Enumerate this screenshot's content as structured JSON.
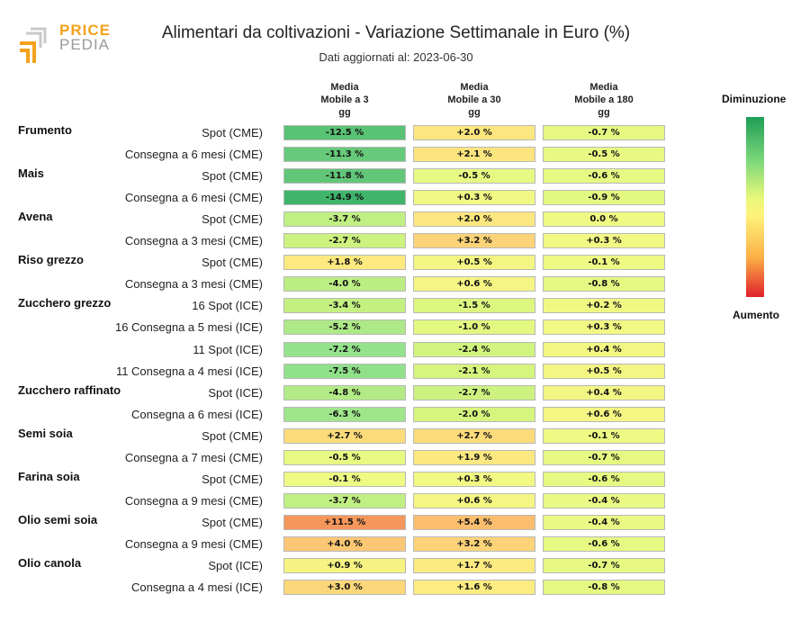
{
  "logo": {
    "line1": "PRICE",
    "line2": "PEDIA"
  },
  "header": {
    "title": "Alimentari da coltivazioni - Variazione Settimanale in Euro (%)",
    "subtitle": "Dati aggiornati al: 2023-06-30"
  },
  "legend": {
    "top": "Diminuzione",
    "bottom": "Aumento"
  },
  "chart_data": {
    "type": "heatmap",
    "columns": [
      "Media Mobile a 3 gg",
      "Media Mobile a 30 gg",
      "Media Mobile a 180 gg"
    ],
    "column_lines": [
      [
        "Media",
        "Mobile a 3",
        "gg"
      ],
      [
        "Media",
        "Mobile a 30",
        "gg"
      ],
      [
        "Media",
        "Mobile a 180",
        "gg"
      ]
    ],
    "rows": [
      {
        "group": "Frumento",
        "label": "Spot (CME)",
        "values": [
          -12.5,
          2.0,
          -0.7
        ],
        "text": [
          "-12.5 %",
          "+2.0 %",
          "-0.7 %"
        ]
      },
      {
        "group": "",
        "label": "Consegna a 6 mesi (CME)",
        "values": [
          -11.3,
          2.1,
          -0.5
        ],
        "text": [
          "-11.3 %",
          "+2.1 %",
          "-0.5 %"
        ]
      },
      {
        "group": "Mais",
        "label": "Spot (CME)",
        "values": [
          -11.8,
          -0.5,
          -0.6
        ],
        "text": [
          "-11.8 %",
          "-0.5 %",
          "-0.6 %"
        ]
      },
      {
        "group": "",
        "label": "Consegna a 6 mesi (CME)",
        "values": [
          -14.9,
          0.3,
          -0.9
        ],
        "text": [
          "-14.9 %",
          "+0.3 %",
          "-0.9 %"
        ]
      },
      {
        "group": "Avena",
        "label": "Spot (CME)",
        "values": [
          -3.7,
          2.0,
          0.0
        ],
        "text": [
          "-3.7 %",
          "+2.0 %",
          "0.0 %"
        ]
      },
      {
        "group": "",
        "label": "Consegna a 3 mesi (CME)",
        "values": [
          -2.7,
          3.2,
          0.3
        ],
        "text": [
          "-2.7 %",
          "+3.2 %",
          "+0.3 %"
        ]
      },
      {
        "group": "Riso grezzo",
        "label": "Spot (CME)",
        "values": [
          1.8,
          0.5,
          -0.1
        ],
        "text": [
          "+1.8 %",
          "+0.5 %",
          "-0.1 %"
        ]
      },
      {
        "group": "",
        "label": "Consegna a 3 mesi (CME)",
        "values": [
          -4.0,
          0.6,
          -0.8
        ],
        "text": [
          "-4.0 %",
          "+0.6 %",
          "-0.8 %"
        ]
      },
      {
        "group": "Zucchero grezzo",
        "label": "16 Spot (ICE)",
        "values": [
          -3.4,
          -1.5,
          0.2
        ],
        "text": [
          "-3.4 %",
          "-1.5 %",
          "+0.2 %"
        ]
      },
      {
        "group": "",
        "label": "16 Consegna a 5 mesi (ICE)",
        "values": [
          -5.2,
          -1.0,
          0.3
        ],
        "text": [
          "-5.2 %",
          "-1.0 %",
          "+0.3 %"
        ]
      },
      {
        "group": "",
        "label": "11 Spot (ICE)",
        "values": [
          -7.2,
          -2.4,
          0.4
        ],
        "text": [
          "-7.2 %",
          "-2.4 %",
          "+0.4 %"
        ]
      },
      {
        "group": "",
        "label": "11 Consegna a 4 mesi (ICE)",
        "values": [
          -7.5,
          -2.1,
          0.5
        ],
        "text": [
          "-7.5 %",
          "-2.1 %",
          "+0.5 %"
        ]
      },
      {
        "group": "Zucchero raffinato",
        "label": "Spot (ICE)",
        "values": [
          -4.8,
          -2.7,
          0.4
        ],
        "text": [
          "-4.8 %",
          "-2.7 %",
          "+0.4 %"
        ]
      },
      {
        "group": "",
        "label": "Consegna a 6 mesi (ICE)",
        "values": [
          -6.3,
          -2.0,
          0.6
        ],
        "text": [
          "-6.3 %",
          "-2.0 %",
          "+0.6 %"
        ]
      },
      {
        "group": "Semi soia",
        "label": "Spot (CME)",
        "values": [
          2.7,
          2.7,
          -0.1
        ],
        "text": [
          "+2.7 %",
          "+2.7 %",
          "-0.1 %"
        ]
      },
      {
        "group": "",
        "label": "Consegna a 7 mesi (CME)",
        "values": [
          -0.5,
          1.9,
          -0.7
        ],
        "text": [
          "-0.5 %",
          "+1.9 %",
          "-0.7 %"
        ]
      },
      {
        "group": "Farina soia",
        "label": "Spot (CME)",
        "values": [
          -0.1,
          0.3,
          -0.6
        ],
        "text": [
          "-0.1 %",
          "+0.3 %",
          "-0.6 %"
        ]
      },
      {
        "group": "",
        "label": "Consegna a 9 mesi (CME)",
        "values": [
          -3.7,
          0.6,
          -0.4
        ],
        "text": [
          "-3.7 %",
          "+0.6 %",
          "-0.4 %"
        ]
      },
      {
        "group": "Olio semi soia",
        "label": "Spot (CME)",
        "values": [
          11.5,
          5.4,
          -0.4
        ],
        "text": [
          "+11.5 %",
          "+5.4 %",
          "-0.4 %"
        ]
      },
      {
        "group": "",
        "label": "Consegna a 9 mesi (CME)",
        "values": [
          4.0,
          3.2,
          -0.6
        ],
        "text": [
          "+4.0 %",
          "+3.2 %",
          "-0.6 %"
        ]
      },
      {
        "group": "Olio canola",
        "label": "Spot (ICE)",
        "values": [
          0.9,
          1.7,
          -0.7
        ],
        "text": [
          "+0.9 %",
          "+1.7 %",
          "-0.7 %"
        ]
      },
      {
        "group": "",
        "label": "Consegna a 4 mesi (ICE)",
        "values": [
          3.0,
          1.6,
          -0.8
        ],
        "text": [
          "+3.0 %",
          "+1.6 %",
          "-0.8 %"
        ]
      }
    ],
    "color_scale": {
      "stops": [
        {
          "value": -15,
          "color": "#3fb36b"
        },
        {
          "value": -7,
          "color": "#96e38c"
        },
        {
          "value": -2,
          "color": "#d6f57e"
        },
        {
          "value": 0,
          "color": "#eefa84"
        },
        {
          "value": 1.5,
          "color": "#fcee82"
        },
        {
          "value": 4,
          "color": "#fcc774"
        },
        {
          "value": 12,
          "color": "#f4945a"
        }
      ]
    }
  }
}
